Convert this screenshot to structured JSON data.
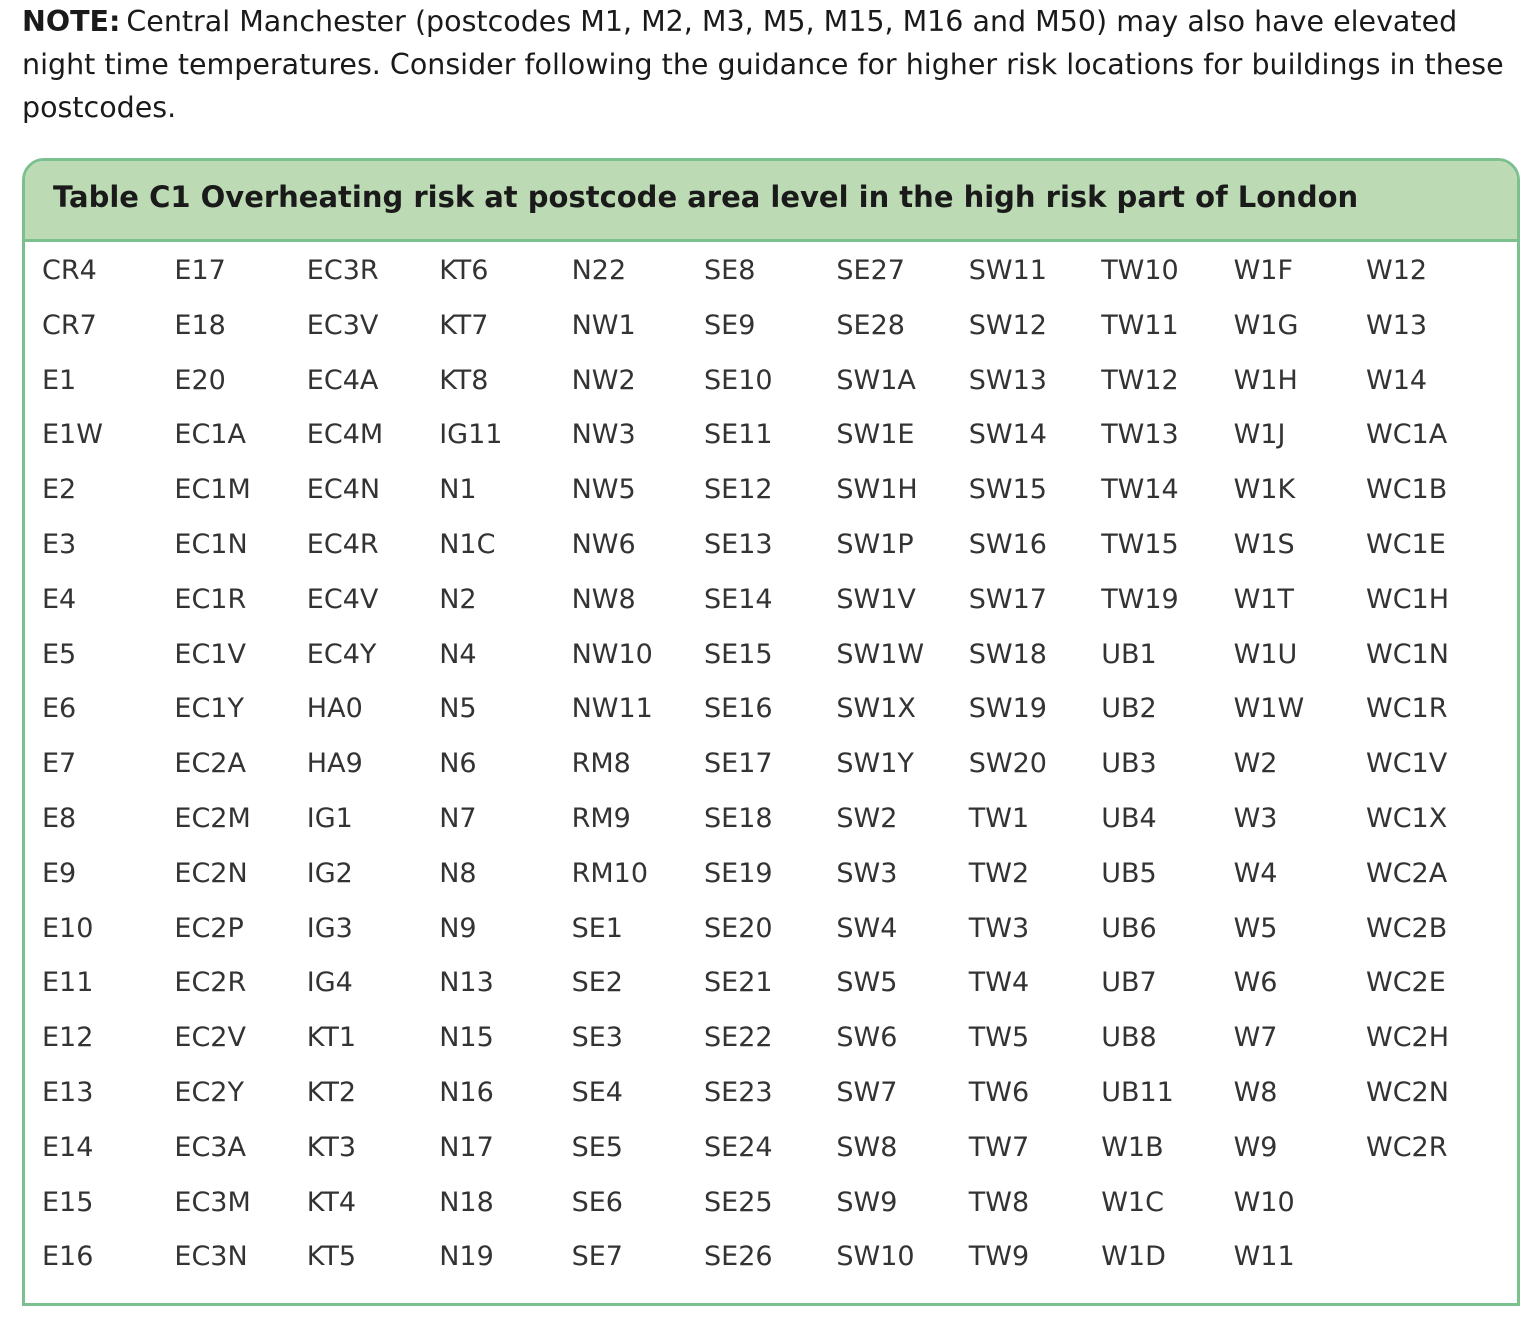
{
  "note": {
    "label": "NOTE:",
    "text": "Central Manchester (postcodes M1, M2, M3, M5, M15, M16 and M50) may also have elevated night time temperatures. Consider following the guidance for higher risk locations for buildings in these postcodes."
  },
  "table": {
    "title": "Table C1  Overheating risk at postcode area level in the high risk part of London",
    "rows": [
      [
        "CR4",
        "E17",
        "EC3R",
        "KT6",
        "N22",
        "SE8",
        "SE27",
        "SW11",
        "TW10",
        "W1F",
        "W12"
      ],
      [
        "CR7",
        "E18",
        "EC3V",
        "KT7",
        "NW1",
        "SE9",
        "SE28",
        "SW12",
        "TW11",
        "W1G",
        "W13"
      ],
      [
        "E1",
        "E20",
        "EC4A",
        "KT8",
        "NW2",
        "SE10",
        "SW1A",
        "SW13",
        "TW12",
        "W1H",
        "W14"
      ],
      [
        "E1W",
        "EC1A",
        "EC4M",
        "IG11",
        "NW3",
        "SE11",
        "SW1E",
        "SW14",
        "TW13",
        "W1J",
        "WC1A"
      ],
      [
        "E2",
        "EC1M",
        "EC4N",
        "N1",
        "NW5",
        "SE12",
        "SW1H",
        "SW15",
        "TW14",
        "W1K",
        "WC1B"
      ],
      [
        "E3",
        "EC1N",
        "EC4R",
        "N1C",
        "NW6",
        "SE13",
        "SW1P",
        "SW16",
        "TW15",
        "W1S",
        "WC1E"
      ],
      [
        "E4",
        "EC1R",
        "EC4V",
        "N2",
        "NW8",
        "SE14",
        "SW1V",
        "SW17",
        "TW19",
        "W1T",
        "WC1H"
      ],
      [
        "E5",
        "EC1V",
        "EC4Y",
        "N4",
        "NW10",
        "SE15",
        "SW1W",
        "SW18",
        "UB1",
        "W1U",
        "WC1N"
      ],
      [
        "E6",
        "EC1Y",
        "HA0",
        "N5",
        "NW11",
        "SE16",
        "SW1X",
        "SW19",
        "UB2",
        "W1W",
        "WC1R"
      ],
      [
        "E7",
        "EC2A",
        "HA9",
        "N6",
        "RM8",
        "SE17",
        "SW1Y",
        "SW20",
        "UB3",
        "W2",
        "WC1V"
      ],
      [
        "E8",
        "EC2M",
        "IG1",
        "N7",
        "RM9",
        "SE18",
        "SW2",
        "TW1",
        "UB4",
        "W3",
        "WC1X"
      ],
      [
        "E9",
        "EC2N",
        "IG2",
        "N8",
        "RM10",
        "SE19",
        "SW3",
        "TW2",
        "UB5",
        "W4",
        "WC2A"
      ],
      [
        "E10",
        "EC2P",
        "IG3",
        "N9",
        "SE1",
        "SE20",
        "SW4",
        "TW3",
        "UB6",
        "W5",
        "WC2B"
      ],
      [
        "E11",
        "EC2R",
        "IG4",
        "N13",
        "SE2",
        "SE21",
        "SW5",
        "TW4",
        "UB7",
        "W6",
        "WC2E"
      ],
      [
        "E12",
        "EC2V",
        "KT1",
        "N15",
        "SE3",
        "SE22",
        "SW6",
        "TW5",
        "UB8",
        "W7",
        "WC2H"
      ],
      [
        "E13",
        "EC2Y",
        "KT2",
        "N16",
        "SE4",
        "SE23",
        "SW7",
        "TW6",
        "UB11",
        "W8",
        "WC2N"
      ],
      [
        "E14",
        "EC3A",
        "KT3",
        "N17",
        "SE5",
        "SE24",
        "SW8",
        "TW7",
        "W1B",
        "W9",
        "WC2R"
      ],
      [
        "E15",
        "EC3M",
        "KT4",
        "N18",
        "SE6",
        "SE25",
        "SW9",
        "TW8",
        "W1C",
        "W10"
      ],
      [
        "E16",
        "EC3N",
        "KT5",
        "N19",
        "SE7",
        "SE26",
        "SW10",
        "TW9",
        "W1D",
        "W11"
      ]
    ]
  }
}
